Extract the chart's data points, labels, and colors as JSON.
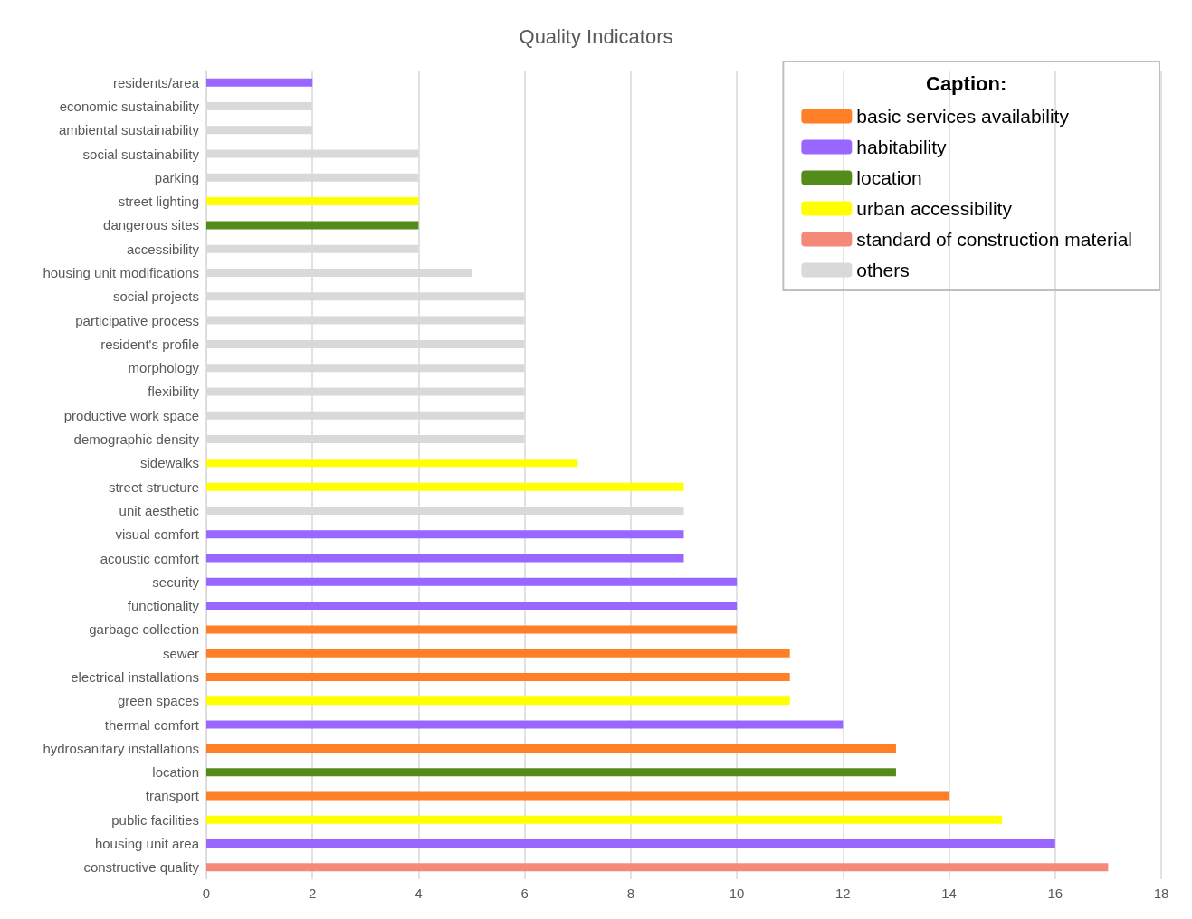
{
  "chart_data": {
    "type": "bar",
    "title": "Quality Indicators",
    "orientation": "horizontal",
    "stacked": true,
    "legend_title": "Caption:",
    "legend": "top right",
    "grid": "x",
    "categories": [
      "residents/area",
      "economic sustainability",
      "ambiental sustainability",
      "social sustainability",
      "parking",
      "street lighting",
      "dangerous sites",
      "accessibility",
      "housing unit modifications",
      "social projects",
      "participative process",
      "resident's profile",
      "morphology",
      "flexibility",
      "productive work space",
      "demographic density",
      "sidewalks",
      "street structure",
      "unit aesthetic",
      "visual comfort",
      "acoustic comfort",
      "security",
      "functionality",
      "garbage collection",
      "sewer",
      "electrical installations",
      "green spaces",
      "thermal comfort",
      "hydrosanitary installations",
      "location",
      "transport",
      "public facilities",
      "housing unit area",
      "constructive quality"
    ],
    "series": [
      {
        "name": "basic services availability",
        "color": "#ff7f27",
        "values": [
          null,
          null,
          null,
          null,
          null,
          null,
          null,
          null,
          null,
          null,
          null,
          null,
          null,
          null,
          null,
          null,
          null,
          null,
          null,
          null,
          null,
          null,
          null,
          10,
          11,
          11,
          null,
          null,
          13,
          null,
          14,
          null,
          null,
          null
        ]
      },
      {
        "name": "habitability",
        "color": "#9966ff",
        "values": [
          2,
          null,
          null,
          null,
          null,
          null,
          null,
          null,
          null,
          null,
          null,
          null,
          null,
          null,
          null,
          null,
          null,
          null,
          null,
          9,
          9,
          10,
          10,
          null,
          null,
          null,
          null,
          12,
          null,
          null,
          null,
          null,
          16,
          null
        ]
      },
      {
        "name": "location",
        "color": "#548c1c",
        "values": [
          null,
          null,
          null,
          null,
          null,
          null,
          4,
          null,
          null,
          null,
          null,
          null,
          null,
          null,
          null,
          null,
          null,
          null,
          null,
          null,
          null,
          null,
          null,
          null,
          null,
          null,
          null,
          null,
          null,
          13,
          null,
          null,
          null,
          null
        ]
      },
      {
        "name": "urban accessibility",
        "color": "#ffff00",
        "values": [
          null,
          null,
          null,
          null,
          null,
          4,
          null,
          null,
          null,
          null,
          null,
          null,
          null,
          null,
          null,
          null,
          7,
          9,
          null,
          null,
          null,
          null,
          null,
          null,
          null,
          null,
          11,
          null,
          null,
          null,
          null,
          15,
          null,
          null
        ]
      },
      {
        "name": "standard of construction material",
        "color": "#f4897a",
        "values": [
          null,
          null,
          null,
          null,
          null,
          null,
          null,
          null,
          null,
          null,
          null,
          null,
          null,
          null,
          null,
          null,
          null,
          null,
          null,
          null,
          null,
          null,
          null,
          null,
          null,
          null,
          null,
          null,
          null,
          null,
          null,
          null,
          null,
          17
        ]
      },
      {
        "name": "others",
        "color": "#d9d9d9",
        "values": [
          null,
          2,
          2,
          4,
          4,
          null,
          null,
          4,
          5,
          6,
          6,
          6,
          6,
          6,
          6,
          6,
          null,
          null,
          9,
          null,
          null,
          null,
          null,
          null,
          null,
          null,
          null,
          null,
          null,
          null,
          null,
          null,
          null,
          null
        ]
      }
    ],
    "xlim": [
      0,
      18
    ],
    "xticks": [
      0,
      2,
      4,
      6,
      8,
      10,
      12,
      14,
      16,
      18
    ]
  }
}
